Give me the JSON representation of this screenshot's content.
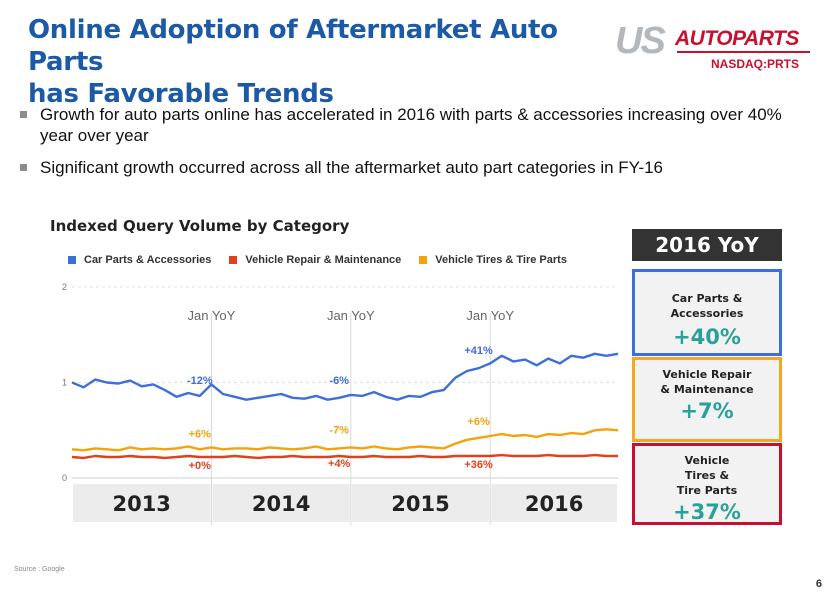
{
  "header": {
    "title_line1": "Online Adoption of Aftermarket Auto Parts",
    "title_line2": "has Favorable Trends",
    "logo_us": "US",
    "logo_autoparts": "AUTOPARTS",
    "logo_ticker": "NASDAQ:PRTS"
  },
  "bullets": [
    "Growth for auto parts online has accelerated in 2016 with parts & accessories increasing over 40% year over year",
    "Significant growth occurred across all the aftermarket auto part categories in FY-16"
  ],
  "yoy_panel": {
    "header": "2016 YoY",
    "boxes": [
      {
        "label": "Car Parts & Accessories",
        "value": "+40%",
        "color": "#3a6fdc"
      },
      {
        "label": "Vehicle Repair & Maintenance",
        "value": "+7%",
        "color": "#f5a623"
      },
      {
        "label": "Vehicle Tires & Tire Parts",
        "value": "+37%",
        "color": "#c8102e"
      }
    ]
  },
  "footer": {
    "source": "Source : Google",
    "page": "6"
  },
  "chart_data": {
    "type": "line",
    "title": "Indexed Query Volume by Category",
    "ylim": [
      0,
      2
    ],
    "yticks": [
      "0",
      "1",
      "2"
    ],
    "years": [
      "2013",
      "2014",
      "2015",
      "2016"
    ],
    "jan_label": "Jan YoY",
    "series": [
      {
        "name": "Car Parts & Accessories",
        "color": "#3d6fd8",
        "values": [
          1.0,
          0.95,
          1.03,
          1.0,
          0.99,
          1.02,
          0.96,
          0.98,
          0.92,
          0.85,
          0.89,
          0.86,
          0.98,
          0.88,
          0.85,
          0.82,
          0.84,
          0.86,
          0.88,
          0.84,
          0.83,
          0.86,
          0.82,
          0.84,
          0.87,
          0.86,
          0.9,
          0.85,
          0.82,
          0.86,
          0.85,
          0.9,
          0.92,
          1.05,
          1.12,
          1.15,
          1.2,
          1.28,
          1.22,
          1.24,
          1.18,
          1.25,
          1.2,
          1.28,
          1.26,
          1.3,
          1.28,
          1.3
        ],
        "annotations": [
          {
            "text": "-12%",
            "index": 11
          },
          {
            "text": "-6%",
            "index": 23
          },
          {
            "text": "+41%",
            "index": 35
          }
        ]
      },
      {
        "name": "Vehicle Repair & Maintenance",
        "color": "#e2401c",
        "values": [
          0.22,
          0.21,
          0.23,
          0.22,
          0.22,
          0.23,
          0.22,
          0.22,
          0.21,
          0.22,
          0.23,
          0.22,
          0.22,
          0.22,
          0.23,
          0.22,
          0.21,
          0.22,
          0.22,
          0.23,
          0.22,
          0.22,
          0.22,
          0.23,
          0.22,
          0.22,
          0.23,
          0.22,
          0.22,
          0.22,
          0.23,
          0.22,
          0.22,
          0.23,
          0.23,
          0.23,
          0.23,
          0.24,
          0.23,
          0.23,
          0.23,
          0.24,
          0.23,
          0.23,
          0.23,
          0.24,
          0.23,
          0.23
        ],
        "annotations": [
          {
            "text": "+0%",
            "index": 11
          },
          {
            "text": "+4%",
            "index": 23
          },
          {
            "text": "+36%",
            "index": 35
          }
        ]
      },
      {
        "name": "Vehicle Tires & Tire Parts",
        "color": "#f5a20d",
        "values": [
          0.3,
          0.29,
          0.31,
          0.3,
          0.29,
          0.32,
          0.3,
          0.31,
          0.3,
          0.31,
          0.33,
          0.3,
          0.32,
          0.3,
          0.31,
          0.31,
          0.3,
          0.32,
          0.31,
          0.3,
          0.31,
          0.33,
          0.3,
          0.31,
          0.32,
          0.31,
          0.33,
          0.31,
          0.3,
          0.32,
          0.33,
          0.32,
          0.31,
          0.36,
          0.4,
          0.42,
          0.44,
          0.46,
          0.44,
          0.45,
          0.43,
          0.46,
          0.45,
          0.47,
          0.46,
          0.5,
          0.51,
          0.5
        ],
        "annotations": [
          {
            "text": "+6%",
            "index": 11
          },
          {
            "text": "-7%",
            "index": 23
          },
          {
            "text": "+6%",
            "index": 35
          }
        ]
      }
    ]
  }
}
